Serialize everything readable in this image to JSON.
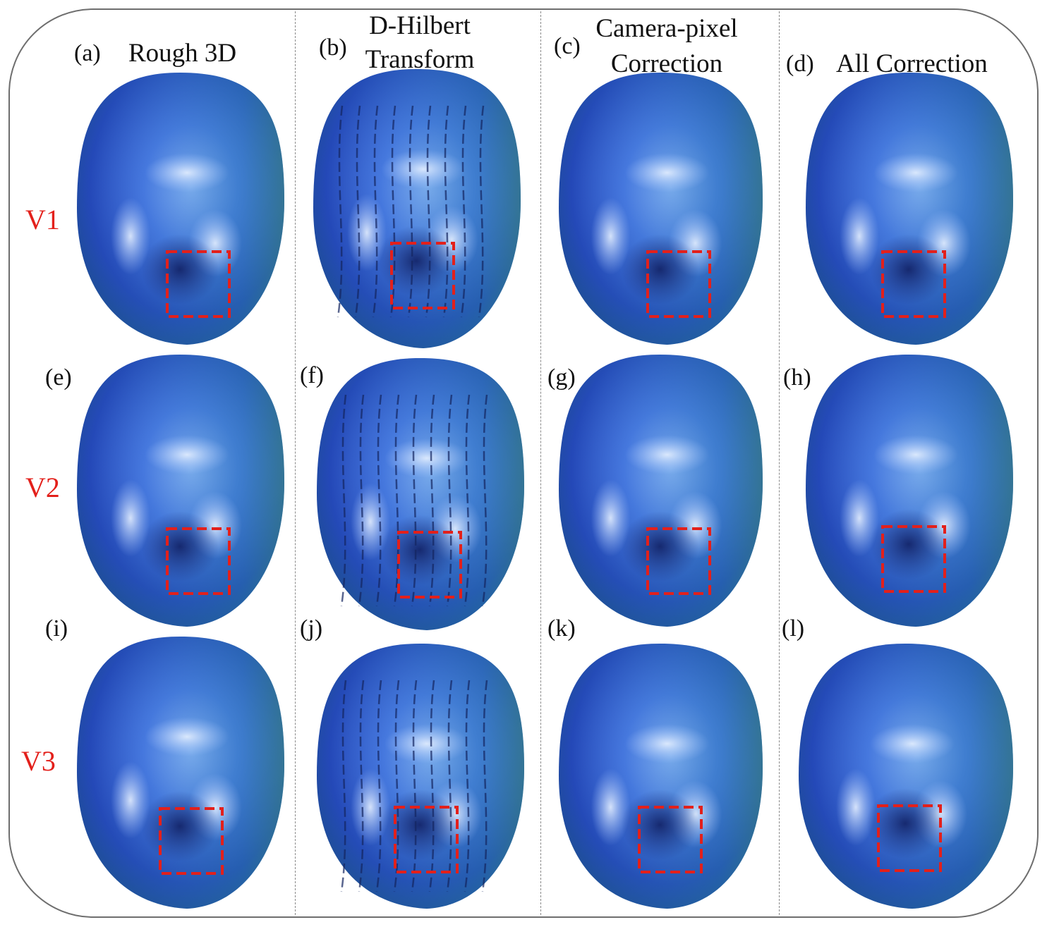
{
  "columns": [
    {
      "letter": "(a)",
      "title": "Rough 3D"
    },
    {
      "letter": "(b)",
      "title_line1": "D-Hilbert",
      "title_line2": "Transform"
    },
    {
      "letter": "(c)",
      "title_line1": "Camera-pixel",
      "title_line2": "Correction"
    },
    {
      "letter": "(d)",
      "title": "All Correction"
    }
  ],
  "panel_letters": [
    "(e)",
    "(f)",
    "(g)",
    "(h)",
    "(i)",
    "(j)",
    "(k)",
    "(l)"
  ],
  "rows": [
    "V1",
    "V2",
    "V3"
  ],
  "colors": {
    "row_label": "#e3201b",
    "highlight_box": "#e3201b",
    "surface_light": "#9fc0ff",
    "surface_mid": "#3a64d8",
    "surface_dark": "#1b2f7a",
    "edge_green": "#3e9c6a"
  }
}
